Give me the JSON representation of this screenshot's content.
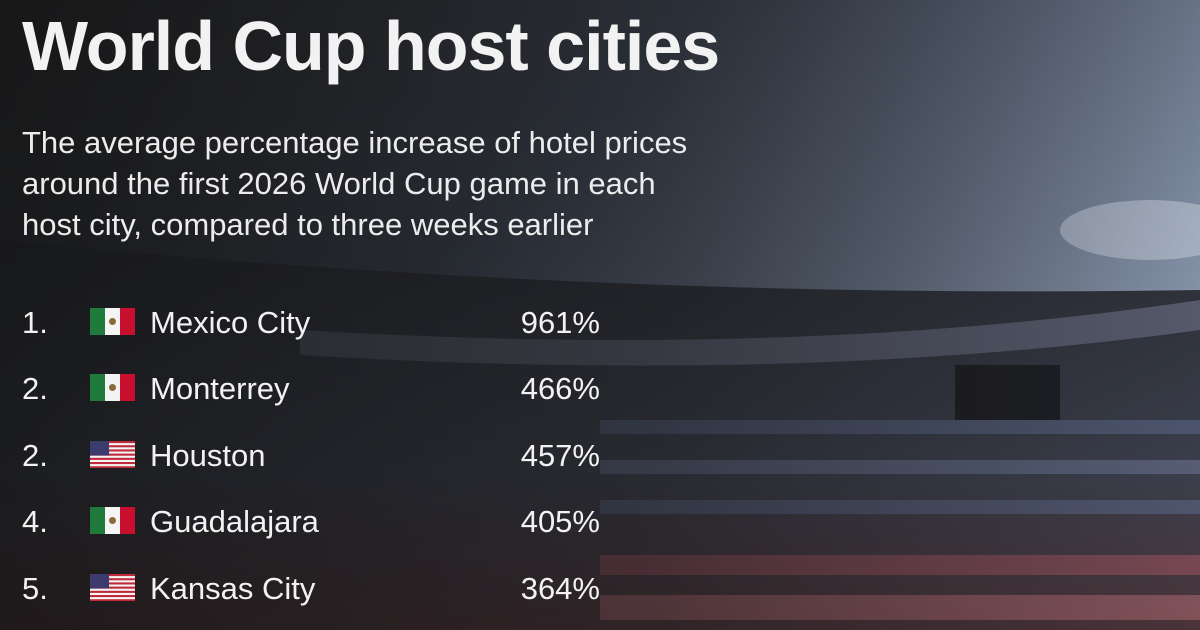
{
  "header": {
    "title": "World Cup host cities",
    "subtitle": [
      "The average percentage increase of hotel prices",
      "around the first 2026 World Cup game in each",
      "host city, compared to three weeks earlier"
    ]
  },
  "table": {
    "rows": [
      [
        "1.",
        "Mexico City",
        "961%"
      ],
      [
        "2.",
        "Monterrey",
        "466%"
      ],
      [
        "2.",
        "Houston",
        "457%"
      ],
      [
        "4.",
        "Guadalajara",
        "405%"
      ],
      [
        "5.",
        "Kansas City",
        "364%"
      ]
    ]
  }
}
